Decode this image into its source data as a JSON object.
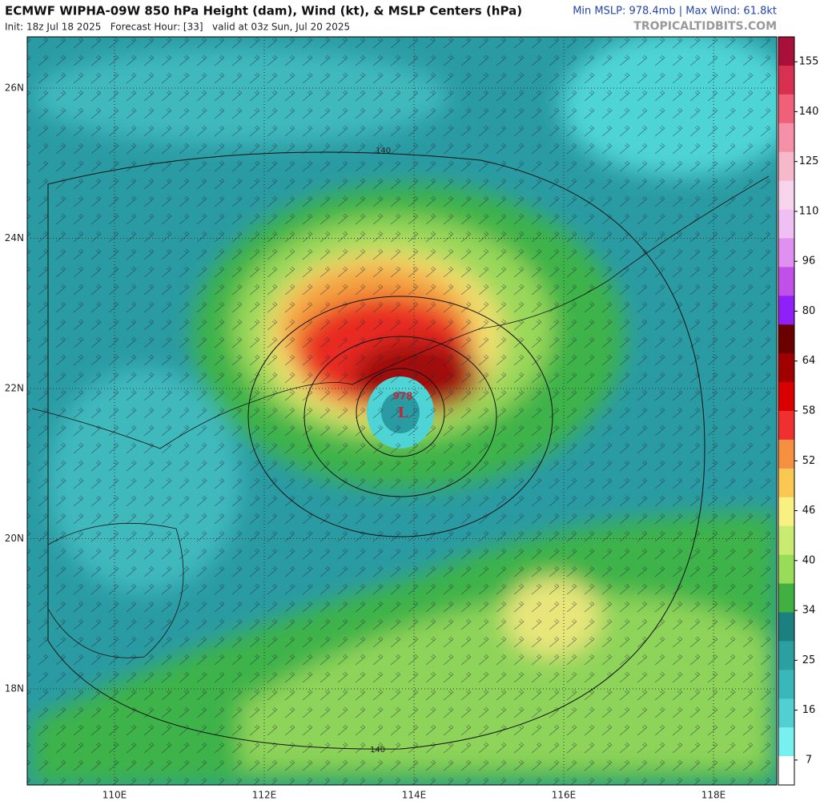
{
  "header": {
    "title": "ECMWF WIPHA-09W 850 hPa Height (dam), Wind (kt), & MSLP Centers (hPa)",
    "init": "Init: 18z Jul 18 2025   Forecast Hour: [33]   valid at 03z Sun, Jul 20 2025",
    "stats": "Min MSLP: 978.4mb | Max Wind: 61.8kt",
    "brand": "TROPICALTIDBITS.COM"
  },
  "map": {
    "lat_labels": [
      "26N",
      "24N",
      "22N",
      "20N",
      "18N"
    ],
    "lon_labels": [
      "110E",
      "112E",
      "114E",
      "116E",
      "118E"
    ],
    "contour_labels": [
      "140",
      "140"
    ],
    "low": {
      "pressure": "978",
      "symbol": "L"
    }
  },
  "colorbar": {
    "ticks": [
      155,
      140,
      125,
      110,
      96,
      80,
      64,
      58,
      52,
      46,
      40,
      34,
      25,
      16,
      7
    ]
  }
}
